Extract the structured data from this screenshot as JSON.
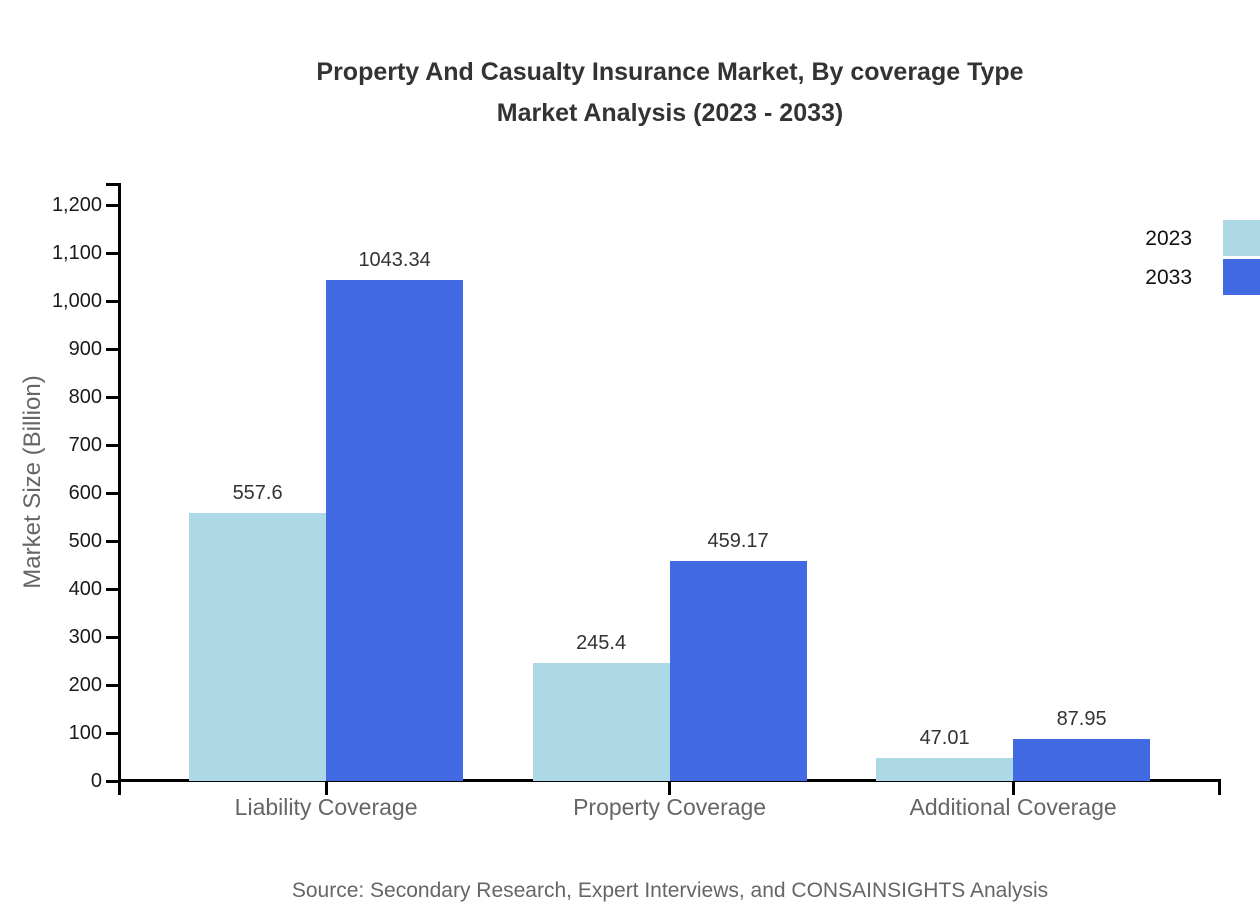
{
  "title": {
    "line1": "Property And Casualty Insurance Market, By coverage Type",
    "line2": "Market Analysis (2023 - 2033)"
  },
  "source": "Source: Secondary Research, Expert Interviews, and CONSAINSIGHTS Analysis",
  "legend": {
    "position": "right",
    "items": [
      {
        "label": "2023",
        "color": "#ADD8E6"
      },
      {
        "label": "2033",
        "color": "#4169E1"
      }
    ]
  },
  "colors": {
    "series_2023": "#ADD8E6",
    "series_2033": "#4169E1",
    "title_text": "#333333",
    "axis_line": "#000000",
    "tick_label": "#1a1a1a",
    "category_label": "#666666",
    "background": "#ffffff"
  },
  "chart_data": {
    "type": "bar",
    "title": "Property And Casualty Insurance Market, By coverage Type Market Analysis (2023 - 2033)",
    "categories": [
      "Liability Coverage",
      "Property Coverage",
      "Additional Coverage"
    ],
    "series": [
      {
        "name": "2023",
        "color": "#ADD8E6",
        "values": [
          557.6,
          245.4,
          47.01
        ],
        "labels": [
          "557.6",
          "245.4",
          "47.01"
        ]
      },
      {
        "name": "2033",
        "color": "#4169E1",
        "values": [
          1043.34,
          459.17,
          87.95
        ],
        "labels": [
          "1043.34",
          "459.17",
          "87.95"
        ]
      }
    ],
    "xlabel": "",
    "ylabel": "Market Size (Billion)",
    "ylim": [
      0,
      1200
    ],
    "ytick_step": 100,
    "ytick_labels": [
      "0",
      "100",
      "200",
      "300",
      "400",
      "500",
      "600",
      "700",
      "800",
      "900",
      "1,000",
      "1,100",
      "1,200"
    ],
    "grid": false,
    "legend_position": "right",
    "data_labels": true
  }
}
